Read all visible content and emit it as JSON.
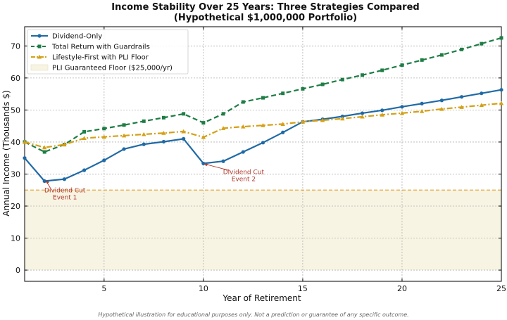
{
  "chart_data": {
    "type": "line",
    "title_line1": "Income Stability Over 25 Years: Three Strategies Compared",
    "title_line2": "(Hypothetical $1,000,000 Portfolio)",
    "xlabel": "Year of Retirement",
    "ylabel": "Annual Income (Thousands $)",
    "xlim": [
      1,
      25
    ],
    "ylim": [
      -3.5,
      76
    ],
    "xticks": [
      5,
      10,
      15,
      20,
      25
    ],
    "yticks": [
      0,
      10,
      20,
      30,
      40,
      50,
      60,
      70
    ],
    "grid": true,
    "legend_position": "top-left",
    "x": [
      1,
      2,
      3,
      4,
      5,
      6,
      7,
      8,
      9,
      10,
      11,
      12,
      13,
      14,
      15,
      16,
      17,
      18,
      19,
      20,
      21,
      22,
      23,
      24,
      25
    ],
    "series": [
      {
        "name": "Dividend-Only",
        "color": "#1f6aa5",
        "style": "solid",
        "marker": "circle",
        "values": [
          35.0,
          27.8,
          28.4,
          31.2,
          34.3,
          37.8,
          39.3,
          40.1,
          41.0,
          33.3,
          34.0,
          36.9,
          39.8,
          43.0,
          46.3,
          47.1,
          48.0,
          49.0,
          49.9,
          51.0,
          52.0,
          53.0,
          54.1,
          55.2,
          56.3
        ]
      },
      {
        "name": "Total Return with Guardrails",
        "color": "#1e7d45",
        "style": "dashed",
        "marker": "square",
        "values": [
          40.0,
          36.9,
          39.2,
          43.2,
          44.2,
          45.3,
          46.5,
          47.6,
          48.8,
          46.0,
          48.8,
          52.5,
          53.8,
          55.2,
          56.6,
          58.0,
          59.5,
          60.9,
          62.4,
          64.0,
          65.6,
          67.2,
          68.9,
          70.7,
          72.5
        ]
      },
      {
        "name": "Lifestyle-First with PLI Floor",
        "color": "#d4a017",
        "style": "dashdot",
        "marker": "triangle",
        "values": [
          40.0,
          38.3,
          39.2,
          41.2,
          41.6,
          42.0,
          42.4,
          42.8,
          43.3,
          41.5,
          44.3,
          44.8,
          45.2,
          45.6,
          46.3,
          46.8,
          47.3,
          47.9,
          48.5,
          49.0,
          49.6,
          50.3,
          50.9,
          51.5,
          52.1
        ]
      }
    ],
    "floor": {
      "name": "PLI Guaranteed Floor ($25,000/yr)",
      "value": 25,
      "line_color": "#e0a83a",
      "fill_color": "#f8f4e3"
    },
    "annotations": [
      {
        "line1": "Dividend Cut",
        "line2": "Event 1",
        "x": 2,
        "y": 27.8
      },
      {
        "line1": "Dividend Cut",
        "line2": "Event 2",
        "x": 10,
        "y": 33.3
      }
    ],
    "footnote": "Hypothetical illustration for educational purposes only. Not a prediction or guarantee of any specific outcome."
  }
}
